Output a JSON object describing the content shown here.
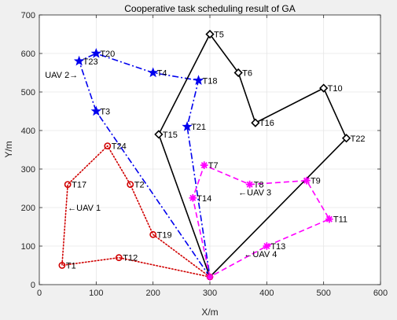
{
  "chart_data": {
    "type": "line",
    "title": "Cooperative task scheduling result of GA",
    "xlabel": "X/m",
    "ylabel": "Y/m",
    "xlim": [
      0,
      600
    ],
    "ylim": [
      0,
      700
    ],
    "xticks": [
      0,
      100,
      200,
      300,
      400,
      500,
      600
    ],
    "yticks": [
      0,
      100,
      200,
      300,
      400,
      500,
      600,
      700
    ],
    "grid": true,
    "depot": {
      "x": 300,
      "y": 20
    },
    "series": [
      {
        "name": "UAV 1",
        "color": "#d00000",
        "dash": "dotted",
        "marker": "circle",
        "route": [
          "T1",
          "T17",
          "T24",
          "T2",
          "T19"
        ],
        "route2": [
          "T12"
        ],
        "points": [
          {
            "label": "T1",
            "x": 40,
            "y": 50
          },
          {
            "label": "T17",
            "x": 50,
            "y": 260
          },
          {
            "label": "T24",
            "x": 120,
            "y": 360
          },
          {
            "label": "T2",
            "x": 160,
            "y": 260
          },
          {
            "label": "T19",
            "x": 200,
            "y": 130
          },
          {
            "label": "T12",
            "x": 140,
            "y": 70
          }
        ]
      },
      {
        "name": "UAV 2",
        "color": "#0000ee",
        "dash": "dashdot",
        "marker": "star",
        "points": [
          {
            "label": "T3",
            "x": 100,
            "y": 450
          },
          {
            "label": "T23",
            "x": 70,
            "y": 580
          },
          {
            "label": "T20",
            "x": 100,
            "y": 600
          },
          {
            "label": "T4",
            "x": 200,
            "y": 550
          },
          {
            "label": "T18",
            "x": 280,
            "y": 530
          },
          {
            "label": "T21",
            "x": 260,
            "y": 410
          }
        ]
      },
      {
        "name": "UAV 3",
        "color": "#000000",
        "dash": "solid",
        "marker": "diamond",
        "points": [
          {
            "label": "T15",
            "x": 210,
            "y": 390
          },
          {
            "label": "T5",
            "x": 300,
            "y": 650
          },
          {
            "label": "T6",
            "x": 350,
            "y": 550
          },
          {
            "label": "T16",
            "x": 380,
            "y": 420
          },
          {
            "label": "T10",
            "x": 500,
            "y": 510
          },
          {
            "label": "T22",
            "x": 540,
            "y": 380
          }
        ]
      },
      {
        "name": "UAV 4",
        "color": "#ff00ff",
        "dash": "dashed",
        "marker": "asterisk",
        "points": [
          {
            "label": "T14",
            "x": 270,
            "y": 225
          },
          {
            "label": "T7",
            "x": 290,
            "y": 310
          },
          {
            "label": "T8",
            "x": 370,
            "y": 260
          },
          {
            "label": "T9",
            "x": 470,
            "y": 270
          },
          {
            "label": "T11",
            "x": 510,
            "y": 170
          },
          {
            "label": "T13",
            "x": 400,
            "y": 100
          }
        ]
      }
    ],
    "annotations": [
      {
        "text": "←UAV 1",
        "x": 50,
        "y": 200
      },
      {
        "text": "UAV 2→",
        "x": 10,
        "y": 545
      },
      {
        "text": "←UAV 3",
        "x": 350,
        "y": 240
      },
      {
        "text": "←UAV 4",
        "x": 360,
        "y": 80
      }
    ]
  }
}
